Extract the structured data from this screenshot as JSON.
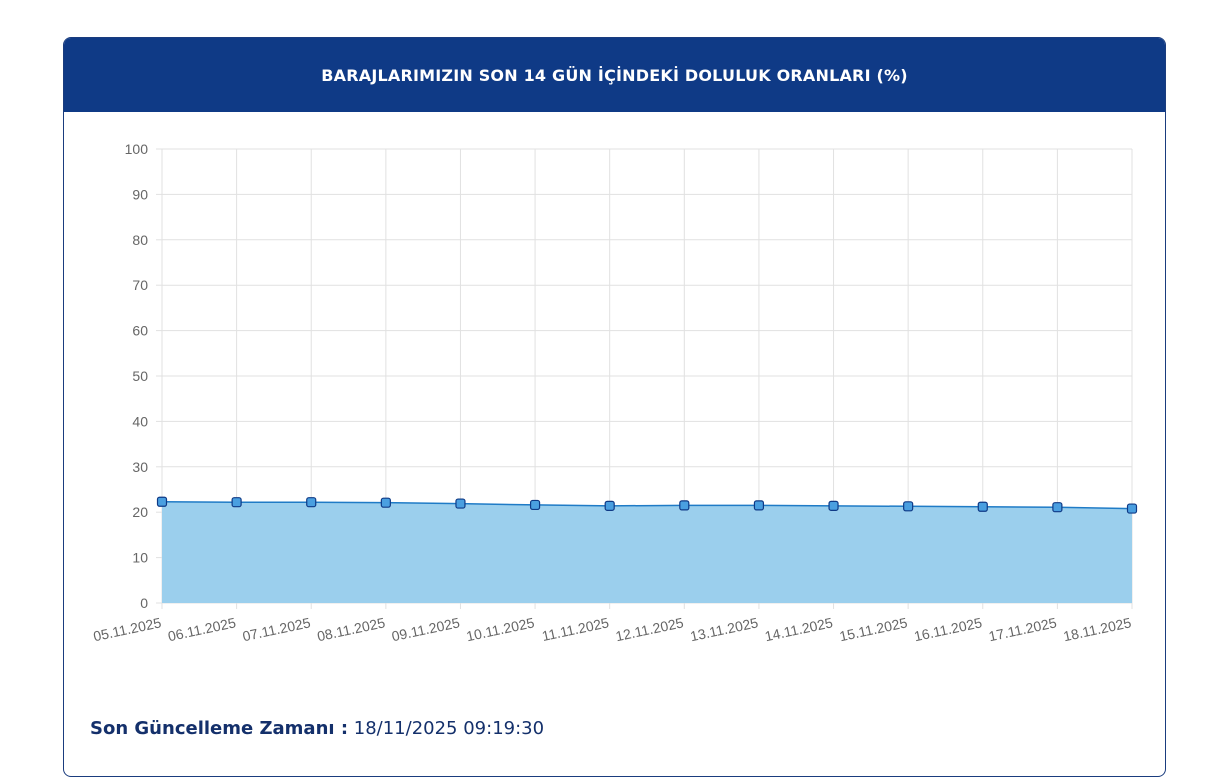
{
  "card": {
    "title": "BARAJLARIMIZIN SON 14 GÜN İÇİNDEKİ DOLULUK ORANLARI (%)"
  },
  "footer": {
    "label": "Son Güncelleme Zamanı :",
    "value": "18/11/2025 09:19:30"
  },
  "colors": {
    "header_bg": "#0f3a86",
    "line": "#1f7bc6",
    "fill": "#9bcfed",
    "marker_fill": "#4a9fe0",
    "marker_stroke": "#0f3a86"
  },
  "chart_data": {
    "type": "area",
    "x": [
      "05.11.2025",
      "06.11.2025",
      "07.11.2025",
      "08.11.2025",
      "09.11.2025",
      "10.11.2025",
      "11.11.2025",
      "12.11.2025",
      "13.11.2025",
      "14.11.2025",
      "15.11.2025",
      "16.11.2025",
      "17.11.2025",
      "18.11.2025"
    ],
    "series": [
      {
        "values": [
          22.3,
          22.2,
          22.2,
          22.1,
          21.9,
          21.6,
          21.4,
          21.5,
          21.5,
          21.4,
          21.3,
          21.2,
          21.1,
          20.8
        ]
      }
    ],
    "ylim": [
      0,
      100
    ],
    "yticks": [
      0,
      10,
      20,
      30,
      40,
      50,
      60,
      70,
      80,
      90,
      100
    ],
    "grid": true,
    "legend": "none",
    "marker": "square"
  }
}
